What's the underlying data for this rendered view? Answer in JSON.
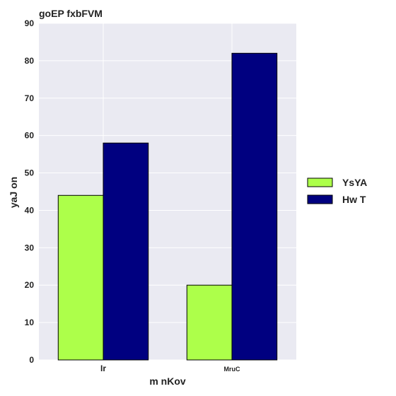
{
  "chart_data": {
    "type": "bar",
    "title": "goEP  fxbFVM",
    "xlabel": "m  nKov",
    "ylabel": "yaJ  on",
    "categories": [
      "Ir",
      "MruC"
    ],
    "series": [
      {
        "name": "YsYA",
        "values": [
          44,
          20
        ],
        "color": "#adff4a"
      },
      {
        "name": "Hw T",
        "values": [
          58,
          82
        ],
        "color": "#000080"
      }
    ],
    "ylim": [
      0,
      90
    ],
    "yticks": [
      0,
      10,
      20,
      30,
      40,
      50,
      60,
      70,
      80,
      90
    ],
    "grid": true,
    "legend_position": "right",
    "background": "#eaeaf2"
  }
}
